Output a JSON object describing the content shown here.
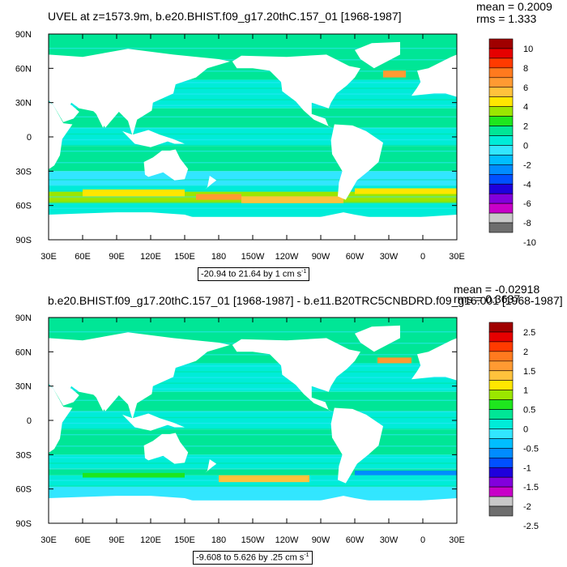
{
  "chart_data": [
    {
      "type": "heatmap",
      "title": "UVEL at z=1573.9m, b.e20.BHIST.f09_g17.20thC.157_01 [1968-1987]",
      "mean": "mean = 0.2009",
      "rms": "rms = 1.333",
      "contour_info": "-20.94 to 21.64 by 1 cm s",
      "contour_unit_exp": "-1",
      "xticks": [
        "30E",
        "60E",
        "90E",
        "120E",
        "150E",
        "180",
        "150W",
        "120W",
        "90W",
        "60W",
        "30W",
        "0",
        "30E"
      ],
      "yticks": [
        "90N",
        "60N",
        "30N",
        "0",
        "30S",
        "60S",
        "90S"
      ],
      "colorbar_labels": [
        "10",
        "8",
        "6",
        "4",
        "2",
        "0",
        "-2",
        "-4",
        "-6",
        "-8",
        "-10"
      ],
      "colorbar_colors": [
        "#a00000",
        "#e60000",
        "#ff3a00",
        "#ff7a1e",
        "#ff9a32",
        "#ffc23c",
        "#ffe600",
        "#9be600",
        "#1ee61e",
        "#00e696",
        "#00ecd8",
        "#32e6ff",
        "#00beff",
        "#008cff",
        "#0050ff",
        "#1e00dc",
        "#8200dc",
        "#c800c8",
        "#c8c8c8",
        "#6e6e6e"
      ],
      "xlim": [
        30,
        390
      ],
      "ylim": [
        -90,
        90
      ]
    },
    {
      "type": "heatmap",
      "title": "b.e20.BHIST.f09_g17.20thC.157_01 [1968-1987] - b.e11.B20TRC5CNBDRD.f09_g16.001 [1968-1987]",
      "mean": "mean = -0.02918",
      "rms": "rms = 0.3637",
      "contour_info": "-9.608 to 5.626 by .25 cm s",
      "contour_unit_exp": "-1",
      "xticks": [
        "30E",
        "60E",
        "90E",
        "120E",
        "150E",
        "180",
        "150W",
        "120W",
        "90W",
        "60W",
        "30W",
        "0",
        "30E"
      ],
      "yticks": [
        "90N",
        "60N",
        "30N",
        "0",
        "30S",
        "60S",
        "90S"
      ],
      "colorbar_labels": [
        "2.5",
        "2",
        "1.5",
        "1",
        "0.5",
        "0",
        "-0.5",
        "-1",
        "-1.5",
        "-2",
        "-2.5"
      ],
      "colorbar_colors": [
        "#a00000",
        "#e60000",
        "#ff3a00",
        "#ff7a1e",
        "#ff9a32",
        "#ffc23c",
        "#ffe600",
        "#9be600",
        "#1ee61e",
        "#00e696",
        "#00ecd8",
        "#32e6ff",
        "#00beff",
        "#008cff",
        "#0050ff",
        "#1e00dc",
        "#8200dc",
        "#c800c8",
        "#c8c8c8",
        "#6e6e6e"
      ],
      "xlim": [
        30,
        390
      ],
      "ylim": [
        -90,
        90
      ]
    }
  ]
}
